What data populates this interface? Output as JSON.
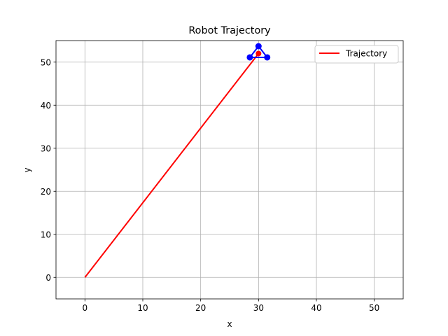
{
  "chart_data": {
    "type": "line",
    "title": "Robot Trajectory",
    "xlabel": "x",
    "ylabel": "y",
    "xlim": [
      -5,
      55
    ],
    "ylim": [
      -5,
      55
    ],
    "xticks": [
      0,
      10,
      20,
      30,
      40,
      50
    ],
    "yticks": [
      0,
      10,
      20,
      30,
      40,
      50
    ],
    "grid": true,
    "legend_position": "top-right",
    "series": [
      {
        "name": "Trajectory",
        "color": "#ff0000",
        "x": [
          0,
          30
        ],
        "y": [
          0,
          52
        ]
      }
    ],
    "robot": {
      "color": "#0000ff",
      "vertices": [
        {
          "x": 30,
          "y": 53.7
        },
        {
          "x": 28.5,
          "y": 51.1
        },
        {
          "x": 31.5,
          "y": 51.1
        }
      ],
      "center": {
        "x": 30,
        "y": 52,
        "color": "#ff0000"
      }
    }
  }
}
